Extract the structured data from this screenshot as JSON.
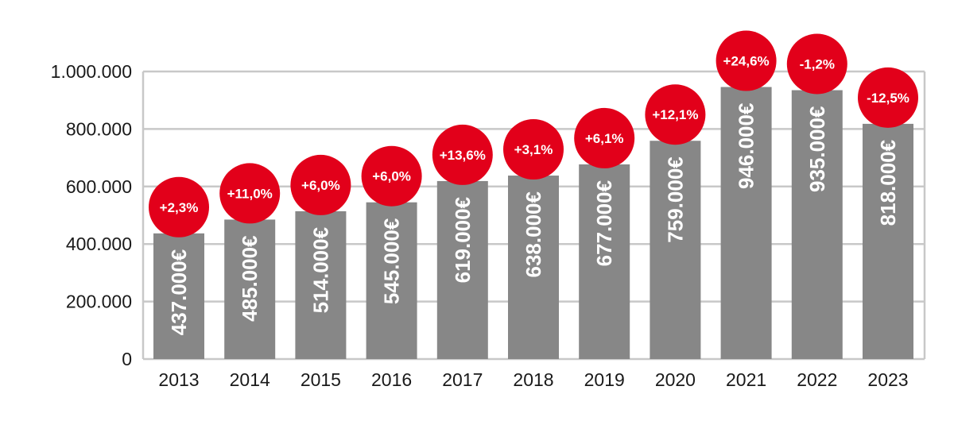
{
  "chart_data": {
    "type": "bar",
    "title": "",
    "xlabel": "",
    "ylabel": "",
    "ylim": [
      0,
      1000000
    ],
    "grid": true,
    "y_ticks": [
      0,
      200000,
      400000,
      600000,
      800000,
      1000000
    ],
    "y_tick_labels": [
      "0",
      "200.000",
      "400.000",
      "600.000",
      "800.000",
      "1.000.000"
    ],
    "categories": [
      "2013",
      "2014",
      "2015",
      "2016",
      "2017",
      "2018",
      "2019",
      "2020",
      "2021",
      "2022",
      "2023"
    ],
    "values": [
      437000,
      485000,
      514000,
      545000,
      619000,
      638000,
      677000,
      759000,
      946000,
      935000,
      818000
    ],
    "value_labels": [
      "437.000€",
      "485.000€",
      "514.000€",
      "545.000€",
      "619.000€",
      "638.000€",
      "677.000€",
      "759.000€",
      "946.000€",
      "935.000€",
      "818.000€"
    ],
    "change_labels": [
      "+2,3%",
      "+11,0%",
      "+6,0%",
      "+6,0%",
      "+13,6%",
      "+3,1%",
      "+6,1%",
      "+12,1%",
      "+24,6%",
      "-1,2%",
      "-12,5%"
    ],
    "colors": {
      "bar": "#878787",
      "badge": "#e2001a",
      "grid": "#c8c8c8",
      "text": "#1a1a1a"
    }
  }
}
